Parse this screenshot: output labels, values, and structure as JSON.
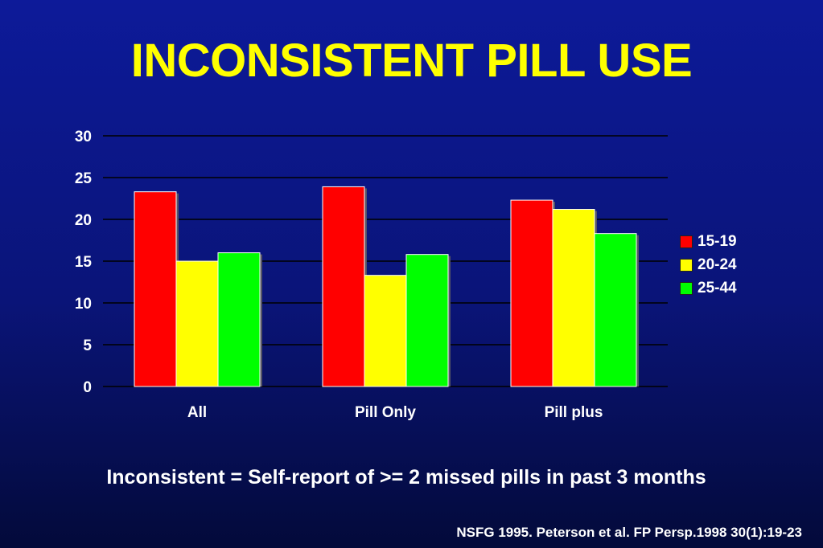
{
  "title": "INCONSISTENT PILL USE",
  "note": "Inconsistent = Self-report of >= 2 missed pills in past 3 months",
  "source": "NSFG 1995. Peterson et al. FP Persp.1998 30(1):19-23",
  "colors": {
    "background": "#0d1a99",
    "title": "#ffff00",
    "text": "#ffffff"
  },
  "chart_data": {
    "type": "bar",
    "categories": [
      "All",
      "Pill Only",
      "Pill plus"
    ],
    "series": [
      {
        "name": "15-19",
        "color": "#ff0000",
        "values": [
          23.3,
          23.9,
          22.3
        ]
      },
      {
        "name": "20-24",
        "color": "#ffff00",
        "values": [
          15.0,
          13.3,
          21.2
        ]
      },
      {
        "name": "25-44",
        "color": "#00ff00",
        "values": [
          16.0,
          15.8,
          18.3
        ]
      }
    ],
    "ylim": [
      0,
      30
    ],
    "yticks": [
      "0",
      "5",
      "10",
      "15",
      "20",
      "25",
      "30"
    ],
    "grid": true,
    "legend": "right"
  }
}
